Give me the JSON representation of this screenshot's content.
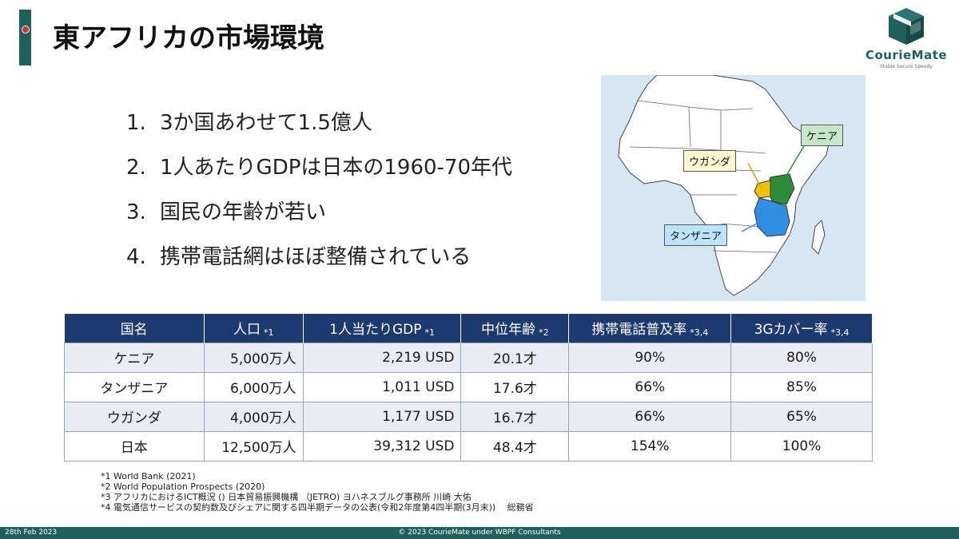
{
  "slide": {
    "title": "東アフリカの市場環境"
  },
  "logo": {
    "word": "CourieMate",
    "tagline": "Stable Secure Speedy"
  },
  "points": [
    {
      "num": "1.",
      "text": "3か国あわせて1.5億人"
    },
    {
      "num": "2.",
      "text": "1人あたりGDPは日本の1960-70年代"
    },
    {
      "num": "3.",
      "text": "国民の年齢が若い"
    },
    {
      "num": "4.",
      "text": "携帯電話網はほぼ整備されている"
    }
  ],
  "map": {
    "labels": {
      "kenya": "ケニア",
      "uganda": "ウガンダ",
      "tanzania": "タンザニア"
    },
    "colors": {
      "kenya": "#2e8b3a",
      "uganda": "#f2c200",
      "tanzania": "#2f8fe0",
      "land": "#ffffff",
      "sea": "#d6e6f2"
    }
  },
  "table": {
    "headers": [
      {
        "label": "国名",
        "note": ""
      },
      {
        "label": "人口",
        "note": "*1"
      },
      {
        "label": "1人当たりGDP",
        "note": "*1"
      },
      {
        "label": "中位年齢",
        "note": "*2"
      },
      {
        "label": "携帯電話普及率",
        "note": "*3,4"
      },
      {
        "label": "3Gカバー率",
        "note": "*3,4"
      }
    ],
    "rows": [
      {
        "name": "ケニア",
        "population": "5,000万人",
        "gdp": "2,219 USD",
        "age": "20.1才",
        "mobile": "90%",
        "coverage": "80%"
      },
      {
        "name": "タンザニア",
        "population": "6,000万人",
        "gdp": "1,011 USD",
        "age": "17.6才",
        "mobile": "66%",
        "coverage": "85%"
      },
      {
        "name": "ウガンダ",
        "population": "4,000万人",
        "gdp": "1,177 USD",
        "age": "16.7才",
        "mobile": "66%",
        "coverage": "65%"
      },
      {
        "name": "日本",
        "population": "12,500万人",
        "gdp": "39,312 USD",
        "age": "48.4才",
        "mobile": "154%",
        "coverage": "100%"
      }
    ]
  },
  "notes": [
    "*1 World Bank (2021)",
    "*2 World Population Prospects (2020)",
    "*3 アフリカにおけるICT概況 () 日本貿易振興機構 （JETRO) ヨハネスブルグ事務所 川崎 大佑",
    "*4 電気通信サービスの契約数及びシェアに関する四半期データの公表(令和2年度第4四半期(3月末))　 総務省"
  ],
  "footer": {
    "date": "28th Feb 2023",
    "copyright": "© 2023 CourieMate under WBPF Consultants"
  }
}
